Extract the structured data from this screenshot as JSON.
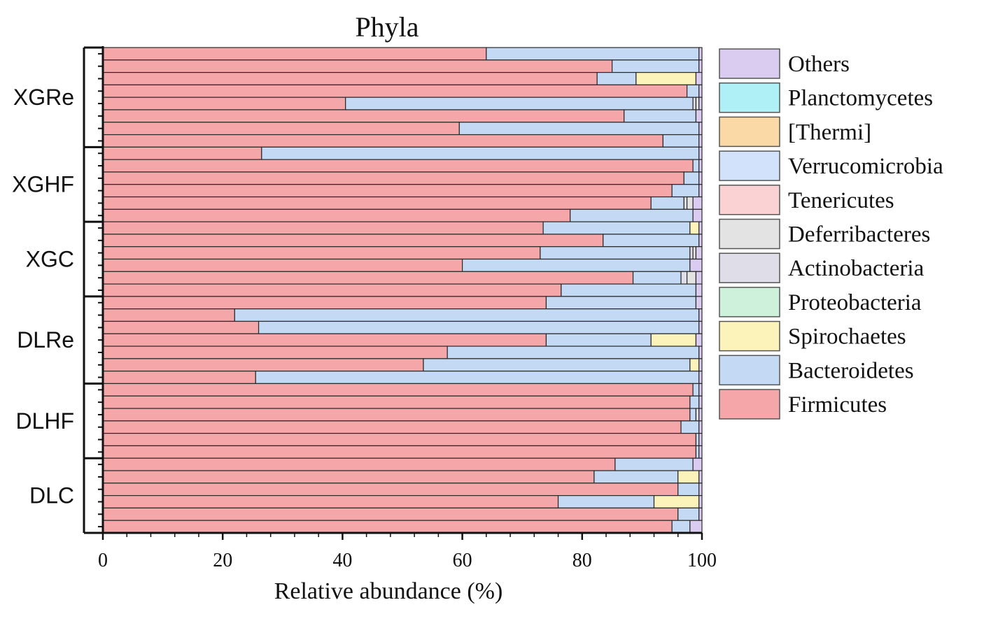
{
  "chart_data": {
    "type": "bar",
    "orientation": "horizontal",
    "stacked": true,
    "title": "Phyla",
    "xlabel": "Relative abundance (%)",
    "ylabel": "",
    "xlim": [
      0,
      100
    ],
    "x_ticks": [
      "0",
      "20",
      "40",
      "60",
      "80",
      "100"
    ],
    "grid": false,
    "legend_position": "right",
    "groups": [
      {
        "name": "XGRe",
        "size": 8
      },
      {
        "name": "XGHF",
        "size": 6
      },
      {
        "name": "XGC",
        "size": 6
      },
      {
        "name": "DLRe",
        "size": 7
      },
      {
        "name": "DLHF",
        "size": 6
      },
      {
        "name": "DLC",
        "size": 6
      }
    ],
    "series_order": [
      "Firmicutes",
      "Bacteroidetes",
      "Spirochaetes",
      "Proteobacteria",
      "Actinobacteria",
      "Deferribacteres",
      "Tenericutes",
      "Verrucomicrobia",
      "[Thermi]",
      "Planctomycetes",
      "Others"
    ],
    "colors": {
      "Others": "#d9ccf0",
      "Planctomycetes": "#aef0f6",
      "[Thermi]": "#fbd9a6",
      "Verrucomicrobia": "#d3e2fb",
      "Tenericutes": "#fbd2d4",
      "Deferribacteres": "#e3e3e3",
      "Actinobacteria": "#dedde8",
      "Proteobacteria": "#cdf1da",
      "Spirochaetes": "#fcf3bb",
      "Bacteroidetes": "#c3d9f4",
      "Firmicutes": "#f4a6a8"
    },
    "legend": [
      "Others",
      "Planctomycetes",
      "[Thermi]",
      "Verrucomicrobia",
      "Tenericutes",
      "Deferribacteres",
      "Actinobacteria",
      "Proteobacteria",
      "Spirochaetes",
      "Bacteroidetes",
      "Firmicutes"
    ],
    "series": [
      {
        "name": "Firmicutes",
        "values": [
          64,
          85,
          82.5,
          97.5,
          40.5,
          87,
          59.5,
          93.5,
          26.5,
          98.5,
          97,
          95,
          91.5,
          78,
          73.5,
          83.5,
          73,
          60,
          88.5,
          76.5,
          74,
          22,
          26,
          74,
          57.5,
          53.5,
          25.5,
          98.5,
          98,
          98,
          96.5,
          99,
          99,
          85.5,
          82,
          96,
          76,
          96,
          95
        ]
      },
      {
        "name": "Bacteroidetes",
        "values": [
          35.5,
          14.5,
          6.5,
          2,
          58,
          12,
          40,
          6,
          73,
          1,
          2.5,
          4.5,
          5.5,
          20.5,
          24.5,
          16,
          25,
          38,
          8,
          22.5,
          25,
          77.5,
          73.5,
          17.5,
          42,
          44.5,
          74,
          1,
          1.5,
          1,
          3,
          0.5,
          0.5,
          13,
          14,
          3.5,
          16,
          3.5,
          3
        ]
      },
      {
        "name": "Spirochaetes",
        "values": [
          0,
          0,
          10,
          0,
          0,
          0,
          0,
          0,
          0,
          0,
          0,
          0,
          0,
          0,
          1.5,
          0,
          0,
          0,
          0,
          0,
          0,
          0,
          0,
          7.5,
          0,
          1.5,
          0,
          0,
          0,
          0,
          0,
          0,
          0,
          0,
          3.5,
          0,
          7.5,
          0,
          0
        ]
      },
      {
        "name": "Proteobacteria",
        "values": [
          0,
          0,
          0,
          0,
          0,
          0,
          0,
          0,
          0,
          0,
          0,
          0,
          0,
          0,
          0,
          0,
          0,
          0,
          0,
          0,
          0,
          0,
          0,
          0,
          0,
          0,
          0,
          0,
          0,
          0,
          0,
          0,
          0,
          0,
          0,
          0,
          0,
          0,
          0
        ]
      },
      {
        "name": "Actinobacteria",
        "values": [
          0,
          0,
          0,
          0,
          0.5,
          0,
          0,
          0,
          0,
          0,
          0,
          0,
          0.5,
          0,
          0,
          0,
          0.5,
          0,
          1,
          0,
          0,
          0,
          0,
          0,
          0,
          0,
          0,
          0,
          0,
          0.5,
          0,
          0,
          0,
          0,
          0,
          0,
          0,
          0,
          0
        ]
      },
      {
        "name": "Deferribacteres",
        "values": [
          0,
          0,
          0,
          0,
          0.5,
          0,
          0,
          0,
          0,
          0,
          0,
          0,
          1,
          0,
          0,
          0,
          0.5,
          0,
          1.5,
          0,
          0,
          0,
          0,
          0,
          0,
          0,
          0,
          0,
          0,
          0,
          0,
          0,
          0,
          0,
          0,
          0,
          0,
          0,
          0
        ]
      },
      {
        "name": "Tenericutes",
        "values": [
          0,
          0,
          0,
          0,
          0,
          0,
          0,
          0,
          0,
          0,
          0,
          0,
          0,
          0,
          0,
          0,
          0,
          0,
          0,
          0,
          0,
          0,
          0,
          0,
          0,
          0,
          0,
          0,
          0,
          0,
          0,
          0,
          0,
          0,
          0,
          0,
          0,
          0,
          0
        ]
      },
      {
        "name": "Verrucomicrobia",
        "values": [
          0,
          0,
          0,
          0,
          0,
          0,
          0,
          0,
          0,
          0,
          0,
          0,
          0,
          0,
          0,
          0,
          0,
          0,
          0,
          0,
          0,
          0,
          0,
          0,
          0,
          0,
          0,
          0,
          0,
          0,
          0,
          0,
          0,
          0,
          0,
          0,
          0,
          0,
          0
        ]
      },
      {
        "name": "[Thermi]",
        "values": [
          0,
          0,
          0,
          0,
          0,
          0,
          0,
          0,
          0,
          0,
          0,
          0,
          0,
          0,
          0,
          0,
          0,
          0,
          0,
          0,
          0,
          0,
          0,
          0,
          0,
          0,
          0,
          0,
          0,
          0,
          0,
          0,
          0,
          0,
          0,
          0,
          0,
          0,
          0
        ]
      },
      {
        "name": "Planctomycetes",
        "values": [
          0,
          0,
          0,
          0,
          0,
          0,
          0,
          0,
          0,
          0,
          0,
          0,
          0,
          0,
          0,
          0,
          0,
          0,
          0,
          0,
          0,
          0,
          0,
          0,
          0,
          0,
          0,
          0,
          0,
          0,
          0,
          0,
          0,
          0,
          0,
          0,
          0,
          0,
          0
        ]
      },
      {
        "name": "Others",
        "values": [
          0.5,
          0.5,
          1,
          0.5,
          0.5,
          1,
          0.5,
          0.5,
          0.5,
          0.5,
          0.5,
          0.5,
          1.5,
          1.5,
          0.5,
          0.5,
          1,
          2,
          1,
          1,
          1,
          0.5,
          0.5,
          1,
          0.5,
          0.5,
          0.5,
          0.5,
          0.5,
          0.5,
          0.5,
          0.5,
          0.5,
          1.5,
          0.5,
          0.5,
          0.5,
          0.5,
          2
        ]
      }
    ]
  }
}
